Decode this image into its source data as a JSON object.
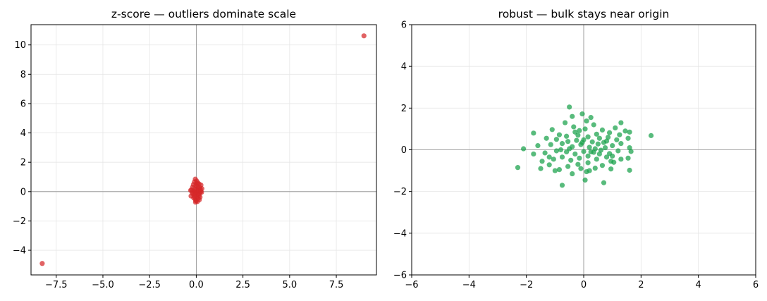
{
  "chart_data": [
    {
      "type": "scatter",
      "title": "z-score — outliers dominate scale",
      "xlabel": "",
      "ylabel": "",
      "xlim": [
        -8.85,
        9.65
      ],
      "ylim": [
        -5.68,
        11.38
      ],
      "xticks": [
        -7.5,
        -5.0,
        -2.5,
        0.0,
        2.5,
        5.0,
        7.5
      ],
      "xtick_labels": [
        "−7.5",
        "−5.0",
        "−2.5",
        "0.0",
        "2.5",
        "5.0",
        "7.5"
      ],
      "yticks": [
        -4,
        -2,
        0,
        2,
        4,
        6,
        8,
        10
      ],
      "ytick_labels": [
        "−4",
        "−2",
        "0",
        "2",
        "4",
        "6",
        "8",
        "10"
      ],
      "grid": true,
      "reference_lines": {
        "x": 0,
        "y": 0
      },
      "point_color": "#d62728",
      "series": [
        {
          "points": [
            [
              8.98,
              10.62
            ],
            [
              -8.25,
              -4.9
            ],
            [
              -0.05,
              0.85
            ],
            [
              0.02,
              0.72
            ],
            [
              -0.1,
              0.66
            ],
            [
              0.08,
              0.6
            ],
            [
              0.15,
              0.52
            ],
            [
              -0.15,
              0.48
            ],
            [
              0.25,
              0.45
            ],
            [
              -0.02,
              0.4
            ],
            [
              0.05,
              0.35
            ],
            [
              -0.2,
              0.3
            ],
            [
              0.18,
              0.28
            ],
            [
              0.1,
              0.22
            ],
            [
              -0.08,
              0.18
            ],
            [
              0.22,
              0.15
            ],
            [
              -0.25,
              0.12
            ],
            [
              0.0,
              0.1
            ],
            [
              0.12,
              0.05
            ],
            [
              -0.12,
              0.02
            ],
            [
              0.05,
              -0.02
            ],
            [
              0.28,
              -0.05
            ],
            [
              -0.05,
              -0.08
            ],
            [
              0.18,
              -0.12
            ],
            [
              -0.18,
              -0.15
            ],
            [
              0.08,
              -0.18
            ],
            [
              -0.1,
              -0.22
            ],
            [
              0.14,
              -0.26
            ],
            [
              -0.28,
              -0.3
            ],
            [
              0.03,
              -0.34
            ],
            [
              0.2,
              -0.38
            ],
            [
              -0.14,
              -0.42
            ],
            [
              0.1,
              -0.46
            ],
            [
              -0.06,
              -0.52
            ],
            [
              0.16,
              -0.56
            ],
            [
              -0.02,
              -0.62
            ],
            [
              0.06,
              -0.68
            ],
            [
              -0.04,
              -0.72
            ],
            [
              0.24,
              0.0
            ],
            [
              -0.22,
              -0.05
            ],
            [
              0.3,
              0.2
            ],
            [
              -0.3,
              0.08
            ],
            [
              0.02,
              0.55
            ],
            [
              -0.08,
              -0.35
            ]
          ]
        }
      ]
    },
    {
      "type": "scatter",
      "title": "robust — bulk stays near origin",
      "xlabel": "",
      "ylabel": "",
      "xlim": [
        -6,
        6
      ],
      "ylim": [
        -6,
        6
      ],
      "xticks": [
        -6,
        -4,
        -2,
        0,
        2,
        4,
        6
      ],
      "xtick_labels": [
        "−6",
        "−4",
        "−2",
        "0",
        "2",
        "4",
        "6"
      ],
      "yticks": [
        -6,
        -4,
        -2,
        0,
        2,
        4,
        6
      ],
      "ytick_labels": [
        "−6",
        "−4",
        "−2",
        "0",
        "2",
        "4",
        "6"
      ],
      "grid": true,
      "reference_lines": {
        "x": 0,
        "y": 0
      },
      "point_color": "#18a149",
      "series": [
        {
          "points": [
            [
              -0.5,
              2.05
            ],
            [
              -0.4,
              1.6
            ],
            [
              -0.05,
              1.72
            ],
            [
              0.25,
              1.55
            ],
            [
              -0.65,
              1.3
            ],
            [
              0.1,
              1.38
            ],
            [
              -0.35,
              1.1
            ],
            [
              0.35,
              1.2
            ],
            [
              1.3,
              1.3
            ],
            [
              -0.15,
              0.92
            ],
            [
              -1.1,
              0.97
            ],
            [
              -0.3,
              0.85
            ],
            [
              0.05,
              1.0
            ],
            [
              0.65,
              0.95
            ],
            [
              1.1,
              1.05
            ],
            [
              1.6,
              0.85
            ],
            [
              1.45,
              0.9
            ],
            [
              2.35,
              0.68
            ],
            [
              -1.75,
              0.8
            ],
            [
              -0.85,
              0.72
            ],
            [
              -0.6,
              0.65
            ],
            [
              -0.2,
              0.7
            ],
            [
              0.15,
              0.62
            ],
            [
              0.45,
              0.75
            ],
            [
              0.9,
              0.82
            ],
            [
              1.25,
              0.72
            ],
            [
              -1.3,
              0.55
            ],
            [
              -0.95,
              0.5
            ],
            [
              -0.55,
              0.4
            ],
            [
              -0.25,
              0.45
            ],
            [
              0.0,
              0.48
            ],
            [
              0.3,
              0.38
            ],
            [
              0.55,
              0.55
            ],
            [
              0.8,
              0.42
            ],
            [
              1.15,
              0.48
            ],
            [
              1.55,
              0.55
            ],
            [
              -2.1,
              0.05
            ],
            [
              -1.6,
              0.2
            ],
            [
              -1.15,
              0.25
            ],
            [
              -0.75,
              0.3
            ],
            [
              -0.4,
              0.15
            ],
            [
              -0.1,
              0.25
            ],
            [
              0.2,
              0.12
            ],
            [
              0.5,
              0.28
            ],
            [
              0.75,
              0.1
            ],
            [
              1.0,
              0.2
            ],
            [
              1.3,
              0.3
            ],
            [
              1.6,
              0.1
            ],
            [
              -1.75,
              -0.2
            ],
            [
              -1.35,
              -0.15
            ],
            [
              -0.95,
              -0.05
            ],
            [
              -0.6,
              -0.1
            ],
            [
              -0.3,
              -0.2
            ],
            [
              0.0,
              -0.08
            ],
            [
              0.35,
              -0.12
            ],
            [
              0.6,
              -0.02
            ],
            [
              0.9,
              -0.18
            ],
            [
              1.2,
              -0.05
            ],
            [
              1.65,
              -0.08
            ],
            [
              1.55,
              -0.4
            ],
            [
              -1.45,
              -0.55
            ],
            [
              -1.05,
              -0.45
            ],
            [
              -0.75,
              -0.35
            ],
            [
              -0.45,
              -0.5
            ],
            [
              -0.15,
              -0.4
            ],
            [
              0.15,
              -0.3
            ],
            [
              0.45,
              -0.45
            ],
            [
              0.8,
              -0.35
            ],
            [
              1.05,
              -0.6
            ],
            [
              1.3,
              -0.45
            ],
            [
              -2.3,
              -0.85
            ],
            [
              -1.5,
              -0.9
            ],
            [
              -1.2,
              -0.72
            ],
            [
              -0.85,
              -0.95
            ],
            [
              -0.55,
              -0.8
            ],
            [
              -0.2,
              -0.7
            ],
            [
              0.15,
              -0.62
            ],
            [
              0.4,
              -0.88
            ],
            [
              0.65,
              -0.75
            ],
            [
              0.95,
              -0.92
            ],
            [
              1.6,
              -0.98
            ],
            [
              -0.4,
              -1.15
            ],
            [
              0.1,
              -1.05
            ],
            [
              0.2,
              -1.0
            ],
            [
              -0.75,
              -1.7
            ],
            [
              0.05,
              -1.45
            ],
            [
              0.7,
              -1.58
            ],
            [
              -1.0,
              -1.0
            ],
            [
              -0.1,
              -0.9
            ],
            [
              0.55,
              -0.2
            ],
            [
              -0.5,
              0.05
            ],
            [
              0.25,
              -0.1
            ],
            [
              0.85,
              0.6
            ],
            [
              -1.2,
              -0.35
            ],
            [
              0.95,
              -0.55
            ],
            [
              -0.05,
              0.35
            ],
            [
              0.7,
              0.35
            ],
            [
              -0.8,
              0.0
            ],
            [
              0.4,
              0.05
            ],
            [
              1.0,
              -0.3
            ]
          ]
        }
      ]
    }
  ]
}
